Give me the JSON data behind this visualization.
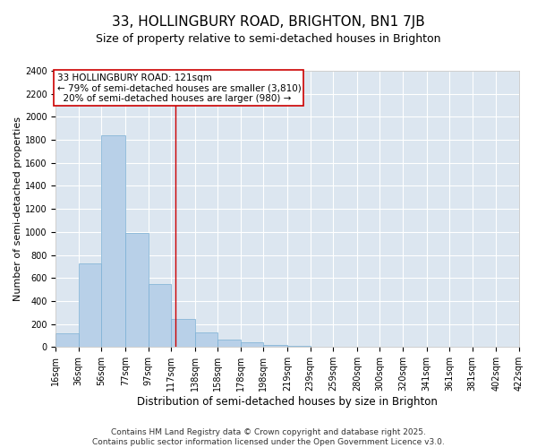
{
  "title": "33, HOLLINGBURY ROAD, BRIGHTON, BN1 7JB",
  "subtitle": "Size of property relative to semi-detached houses in Brighton",
  "xlabel": "Distribution of semi-detached houses by size in Brighton",
  "ylabel": "Number of semi-detached properties",
  "bar_color": "#b8d0e8",
  "bar_edge_color": "#7aafd4",
  "background_color": "#dce6f0",
  "grid_color": "#ffffff",
  "annotation_box_color": "#cc0000",
  "annotation_line_color": "#cc0000",
  "property_line_x": 121,
  "pct_smaller": 79,
  "n_smaller": 3810,
  "pct_larger": 20,
  "n_larger": 980,
  "bin_edges": [
    16,
    36,
    56,
    77,
    97,
    117,
    138,
    158,
    178,
    198,
    219,
    239,
    259,
    280,
    300,
    320,
    341,
    361,
    381,
    402,
    422
  ],
  "bin_labels": [
    "16sqm",
    "36sqm",
    "56sqm",
    "77sqm",
    "97sqm",
    "117sqm",
    "138sqm",
    "158sqm",
    "178sqm",
    "198sqm",
    "219sqm",
    "239sqm",
    "259sqm",
    "280sqm",
    "300sqm",
    "320sqm",
    "341sqm",
    "361sqm",
    "381sqm",
    "402sqm",
    "422sqm"
  ],
  "bar_heights": [
    120,
    730,
    1840,
    990,
    550,
    245,
    130,
    65,
    45,
    20,
    10,
    5,
    3,
    2,
    1,
    1,
    0,
    0,
    0,
    0
  ],
  "ylim": [
    0,
    2400
  ],
  "yticks": [
    0,
    200,
    400,
    600,
    800,
    1000,
    1200,
    1400,
    1600,
    1800,
    2000,
    2200,
    2400
  ],
  "footer_text": "Contains HM Land Registry data © Crown copyright and database right 2025.\nContains public sector information licensed under the Open Government Licence v3.0.",
  "title_fontsize": 11,
  "subtitle_fontsize": 9,
  "xlabel_fontsize": 8.5,
  "ylabel_fontsize": 8,
  "tick_fontsize": 7,
  "annotation_fontsize": 7.5,
  "footer_fontsize": 6.5
}
